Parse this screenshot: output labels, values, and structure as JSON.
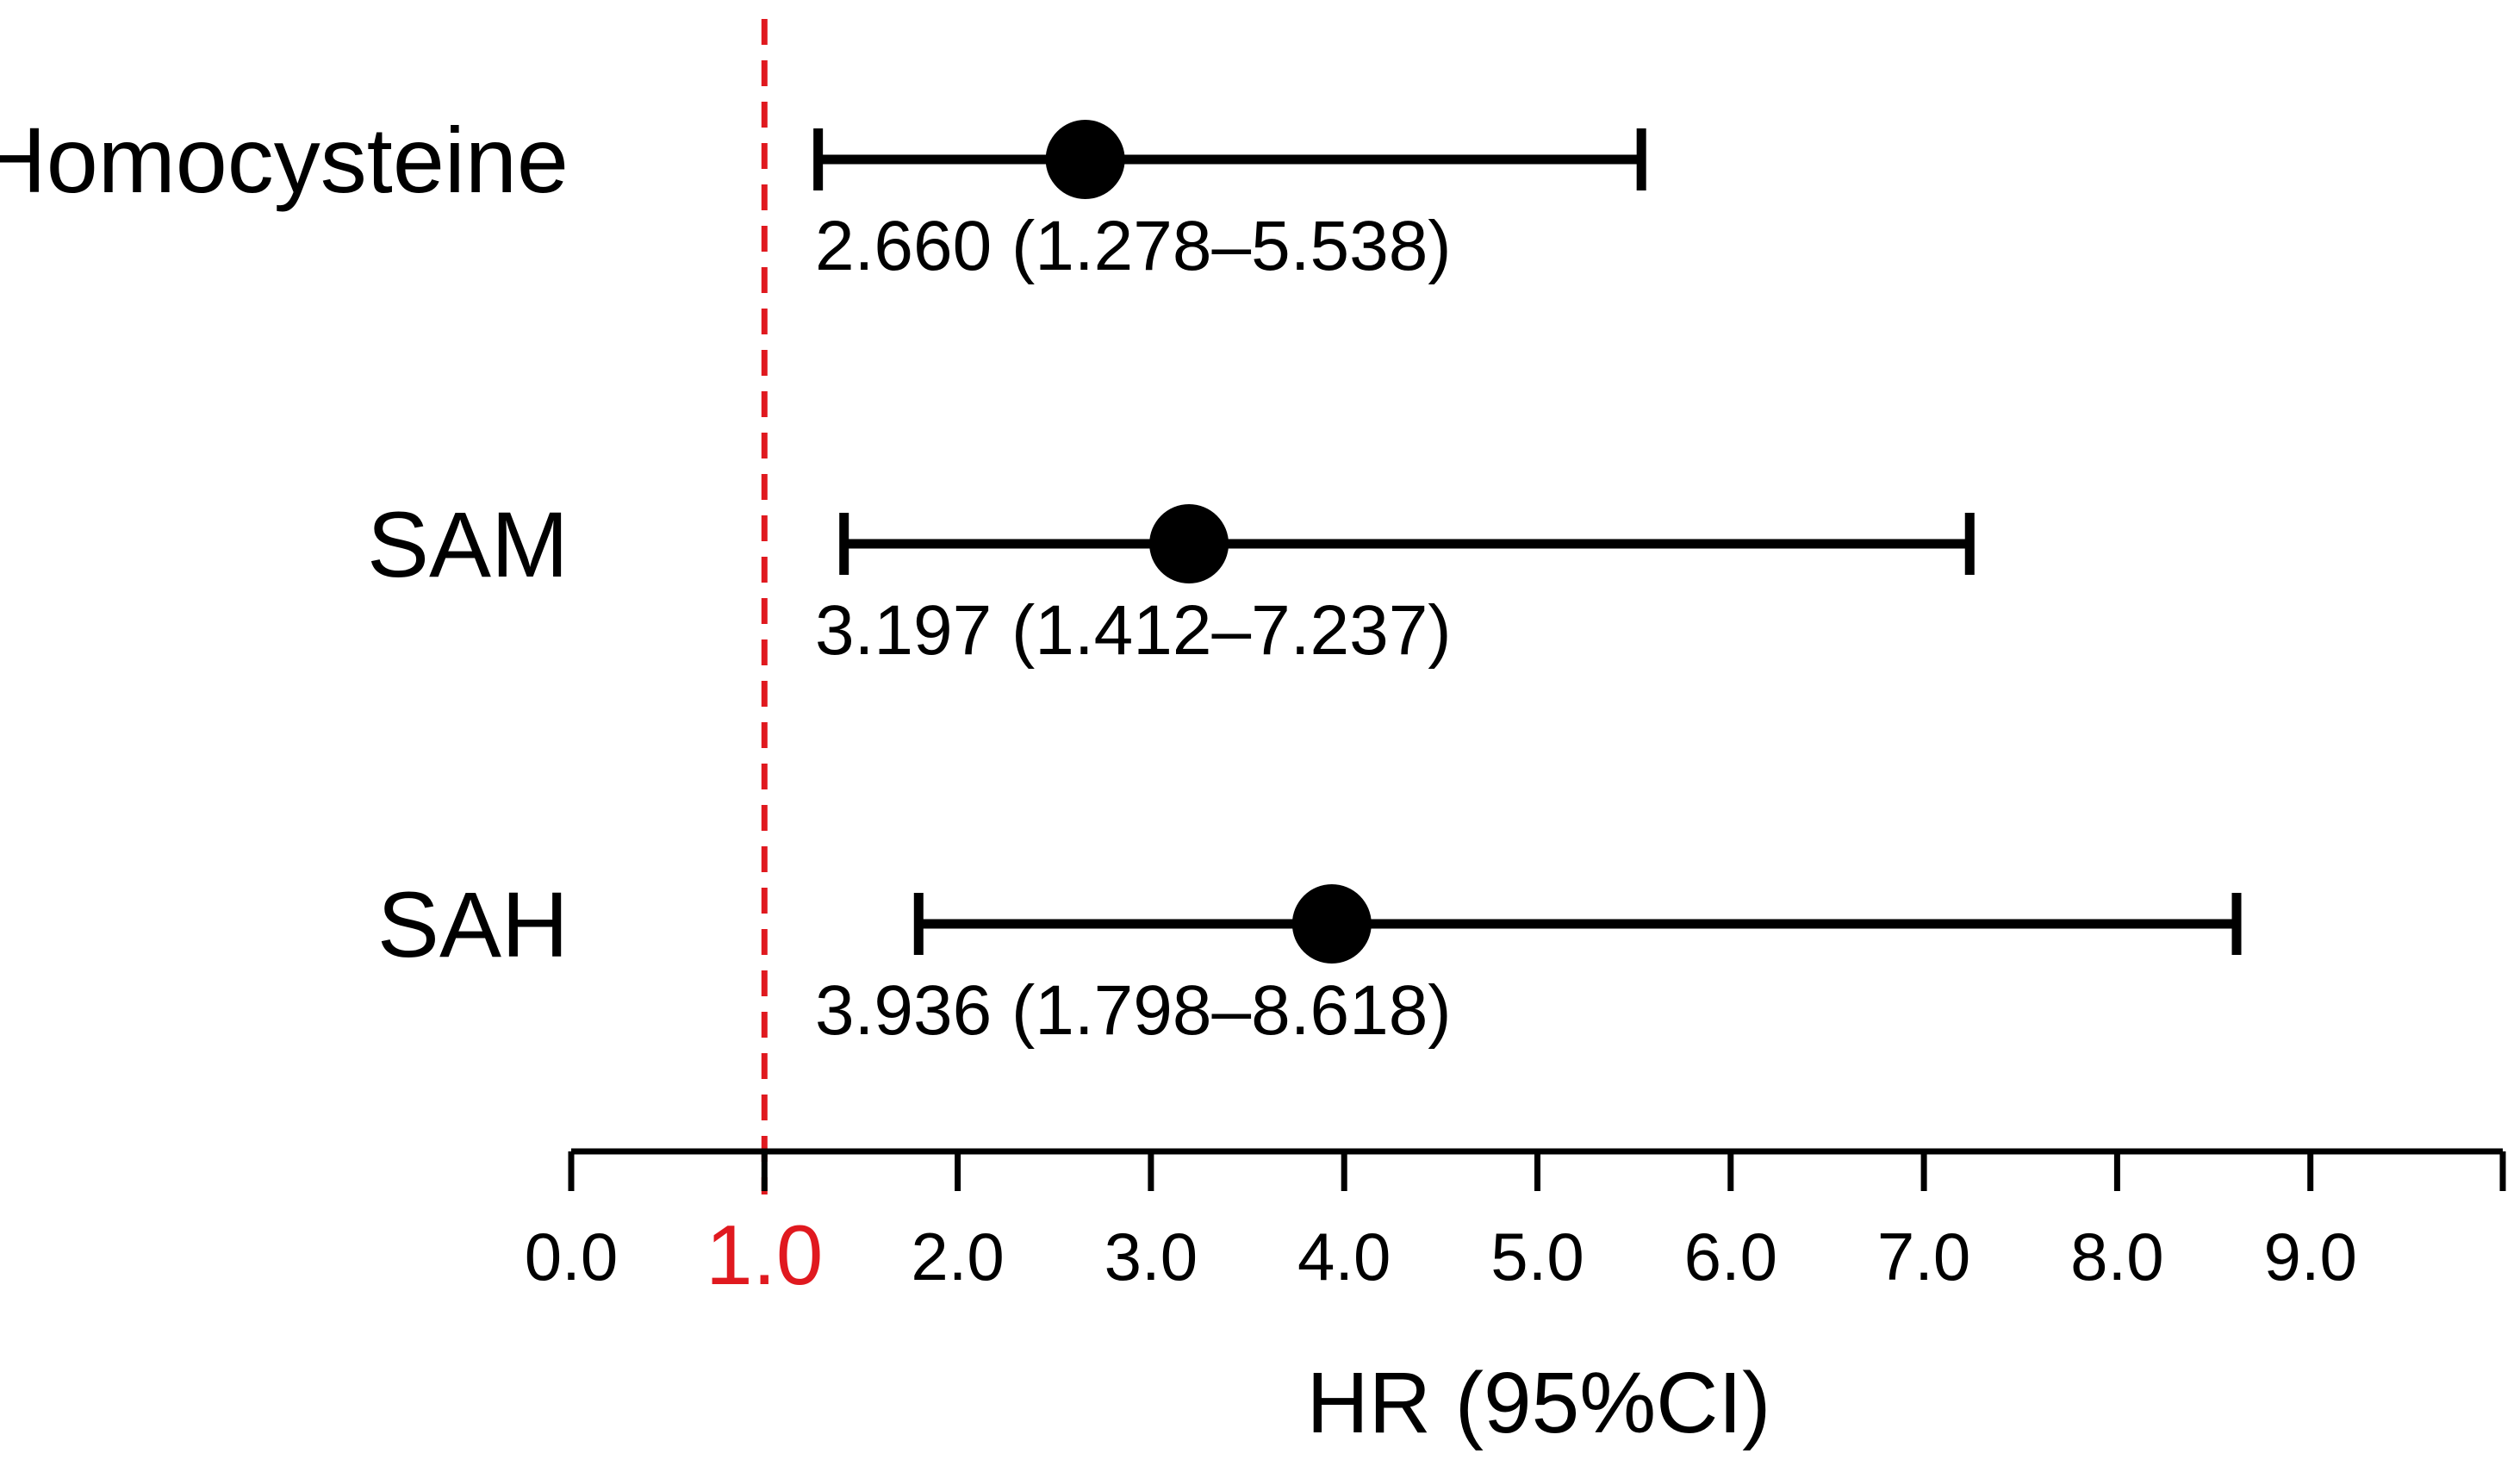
{
  "chart_data": {
    "type": "forest",
    "xlabel": "HR (95%CI)",
    "xlim": [
      0,
      10
    ],
    "ticks": [
      {
        "value": 0,
        "label": "0.0"
      },
      {
        "value": 1,
        "label": "1.0"
      },
      {
        "value": 2,
        "label": "2.0"
      },
      {
        "value": 3,
        "label": "3.0"
      },
      {
        "value": 4,
        "label": "4.0"
      },
      {
        "value": 5,
        "label": "5.0"
      },
      {
        "value": 6,
        "label": "6.0"
      },
      {
        "value": 7,
        "label": "7.0"
      },
      {
        "value": 8,
        "label": "8.0"
      },
      {
        "value": 9,
        "label": "9.0"
      }
    ],
    "reference_line": {
      "value": 1,
      "style": "dashed",
      "color": "#e0191f"
    },
    "rows": [
      {
        "name": "Homocysteine",
        "hr": 2.66,
        "lower": 1.278,
        "upper": 5.538,
        "text": "2.660 (1.278–5.538)"
      },
      {
        "name": "SAM",
        "hr": 3.197,
        "lower": 1.412,
        "upper": 7.237,
        "text": "3.197 (1.412–7.237)"
      },
      {
        "name": "SAH",
        "hr": 3.936,
        "lower": 1.798,
        "upper": 8.618,
        "text": "3.936 (1.798–8.618)"
      }
    ],
    "colors": {
      "marks": "#000000",
      "reference": "#e0191f"
    }
  }
}
